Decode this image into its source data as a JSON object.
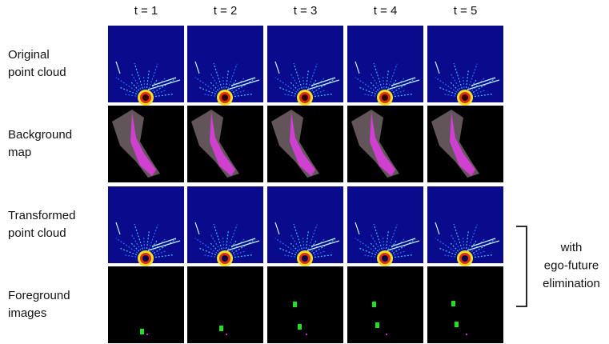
{
  "columns": [
    "t = 1",
    "t = 2",
    "t = 3",
    "t = 4",
    "t = 5"
  ],
  "rows": [
    {
      "lines": [
        "Original",
        "point cloud"
      ]
    },
    {
      "lines": [
        "Background",
        "map"
      ]
    },
    {
      "lines": [
        "Transformed",
        "point cloud"
      ]
    },
    {
      "lines": [
        "Foreground",
        "images"
      ]
    }
  ],
  "bracket": {
    "lines": [
      "with",
      "ego-future",
      "elimination"
    ]
  }
}
